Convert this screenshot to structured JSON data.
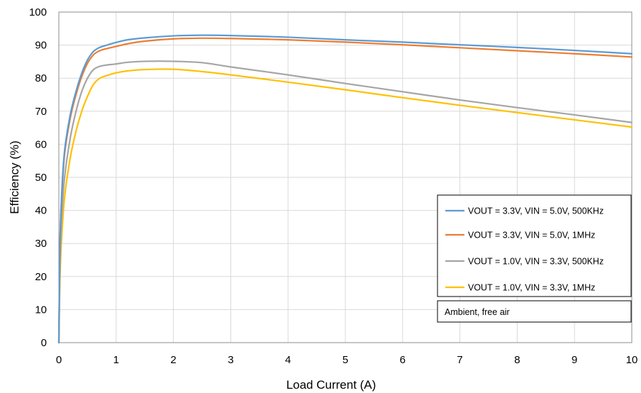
{
  "chart_data": {
    "type": "line",
    "xlabel": "Load Current (A)",
    "ylabel": "Efficiency (%)",
    "xlim": [
      0,
      10
    ],
    "ylim": [
      0,
      100
    ],
    "xticks": [
      "0",
      "1",
      "2",
      "3",
      "4",
      "5",
      "6",
      "7",
      "8",
      "9",
      "10"
    ],
    "yticks": [
      "0",
      "10",
      "20",
      "30",
      "40",
      "50",
      "60",
      "70",
      "80",
      "90",
      "100"
    ],
    "grid": true,
    "legend_position": "bottom-right",
    "note": "Ambient, free air",
    "series": [
      {
        "name": "VOUT = 3.3V, VIN = 5.0V, 500KHz",
        "color": "#5B9BD5",
        "x": [
          0,
          0.02,
          0.05,
          0.1,
          0.2,
          0.3,
          0.4,
          0.5,
          0.6,
          0.7,
          0.8,
          1.0,
          1.2,
          1.5,
          2.0,
          2.5,
          3.0,
          4.0,
          5.0,
          6.0,
          7.0,
          8.0,
          9.0,
          10.0
        ],
        "y": [
          0,
          30,
          45,
          58,
          69,
          76,
          81.5,
          85.5,
          88,
          89.2,
          89.8,
          90.8,
          91.6,
          92.2,
          92.8,
          93.0,
          92.9,
          92.4,
          91.6,
          90.9,
          90.1,
          89.3,
          88.4,
          87.4
        ]
      },
      {
        "name": "VOUT = 3.3V, VIN = 5.0V, 1MHz",
        "color": "#ED7D31",
        "x": [
          0,
          0.02,
          0.05,
          0.1,
          0.2,
          0.3,
          0.4,
          0.5,
          0.6,
          0.7,
          0.8,
          1.0,
          1.2,
          1.5,
          2.0,
          2.5,
          3.0,
          4.0,
          5.0,
          6.0,
          7.0,
          8.0,
          9.0,
          10.0
        ],
        "y": [
          0,
          30,
          44,
          57,
          68,
          75,
          80.5,
          84.5,
          87,
          88.2,
          88.8,
          89.6,
          90.4,
          91.2,
          91.9,
          92.1,
          92.0,
          91.6,
          90.9,
          90.1,
          89.2,
          88.3,
          87.4,
          86.4
        ]
      },
      {
        "name": "VOUT = 1.0V, VIN = 3.3V, 500KHz",
        "color": "#A5A5A5",
        "x": [
          0,
          0.02,
          0.05,
          0.1,
          0.2,
          0.3,
          0.4,
          0.5,
          0.6,
          0.7,
          0.8,
          1.0,
          1.2,
          1.5,
          2.0,
          2.5,
          3.0,
          4.0,
          5.0,
          6.0,
          7.0,
          8.0,
          9.0,
          10.0
        ],
        "y": [
          0,
          25,
          38,
          50,
          62,
          70,
          76,
          80,
          82.5,
          83.5,
          83.9,
          84.3,
          84.8,
          85.1,
          85.1,
          84.7,
          83.4,
          81.0,
          78.4,
          75.9,
          73.4,
          71.1,
          68.9,
          66.6
        ]
      },
      {
        "name": "VOUT = 1.0V, VIN = 3.3V, 1MHz",
        "color": "#FFC000",
        "x": [
          0,
          0.02,
          0.05,
          0.1,
          0.2,
          0.3,
          0.4,
          0.5,
          0.6,
          0.7,
          0.8,
          1.0,
          1.2,
          1.5,
          2.0,
          2.5,
          3.0,
          4.0,
          5.0,
          6.0,
          7.0,
          8.0,
          9.0,
          10.0
        ],
        "y": [
          0,
          20,
          32,
          44,
          56,
          64,
          70,
          74.5,
          78,
          79.8,
          80.6,
          81.6,
          82.2,
          82.6,
          82.7,
          82.0,
          81.0,
          78.8,
          76.5,
          74.1,
          71.8,
          69.6,
          67.4,
          65.2
        ]
      }
    ]
  }
}
